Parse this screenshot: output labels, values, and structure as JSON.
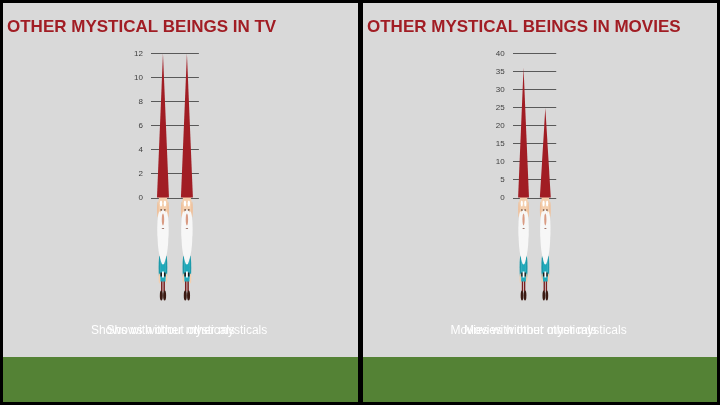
{
  "chart_data": [
    {
      "type": "bar",
      "title": "OTHER MYSTICAL BEINGS IN TV",
      "categories": [
        "Shows with other mysticals",
        "Shows without other mysticals"
      ],
      "values": [
        12,
        12
      ],
      "color": "#a11d24",
      "ylim": [
        0,
        12
      ],
      "yticks": [
        0,
        2,
        4,
        6,
        8,
        10,
        12
      ],
      "grid": true
    },
    {
      "type": "bar",
      "title": "OTHER MYSTICAL BEINGS IN MOVIES",
      "categories": [
        "Movies with other mysticals",
        "Movies without other mysticals"
      ],
      "values": [
        36,
        25
      ],
      "color": "#a11d24",
      "ylim": [
        0,
        40
      ],
      "yticks": [
        0,
        5,
        10,
        15,
        20,
        25,
        30,
        35,
        40
      ],
      "grid": true
    }
  ]
}
